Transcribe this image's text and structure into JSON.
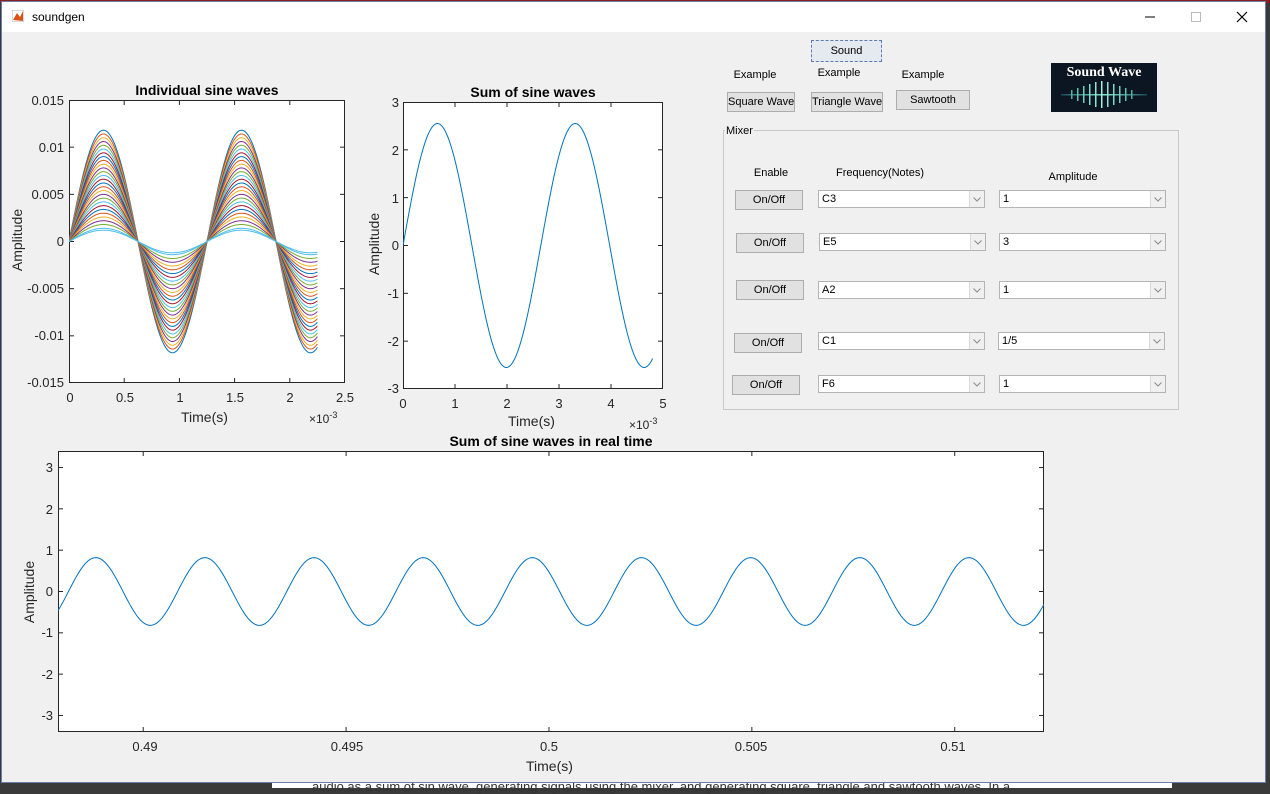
{
  "window": {
    "title": "soundgen"
  },
  "background_doc_text": "audio as a sum of sin wave, generating signals using the mixer, and generating square, triangle and sawtooth waves. In a",
  "plot1": {
    "title": "Individual sine waves",
    "xlabel": "Time(s)",
    "ylabel": "Amplitude",
    "x_exponent": "×10",
    "x_exponent_power": "-3",
    "xticks": [
      "0",
      "0.5",
      "1",
      "1.5",
      "2",
      "2.5"
    ],
    "yticks": [
      "0.015",
      "0.01",
      "0.005",
      "0",
      "-0.005",
      "-0.01",
      "-0.015"
    ]
  },
  "plot2": {
    "title": "Sum of sine waves",
    "xlabel": "Time(s)",
    "ylabel": "Amplitude",
    "x_exponent": "×10",
    "x_exponent_power": "-3",
    "xticks": [
      "0",
      "1",
      "2",
      "3",
      "4",
      "5"
    ],
    "yticks": [
      "3",
      "2",
      "1",
      "0",
      "-1",
      "-2",
      "-3"
    ]
  },
  "plot3": {
    "title": "Sum of sine waves in real time",
    "xlabel": "Time(s)",
    "ylabel": "Amplitude",
    "xticks": [
      "0.49",
      "0.495",
      "0.5",
      "0.505",
      "0.51"
    ],
    "yticks": [
      "3",
      "2",
      "1",
      "0",
      "-1",
      "-2",
      "-3"
    ]
  },
  "controls": {
    "sound_label": "Sound",
    "examples": [
      {
        "caption": "Example",
        "button": "Square Wave"
      },
      {
        "caption": "Example",
        "button": "Triangle Wave"
      },
      {
        "caption": "Example",
        "button": "Sawtooth"
      }
    ],
    "logo_text": "Sound Wave"
  },
  "mixer": {
    "title": "Mixer",
    "headers": {
      "enable": "Enable",
      "frequency": "Frequency(Notes)",
      "amplitude": "Amplitude"
    },
    "rows": [
      {
        "button": "On/Off",
        "note": "C3",
        "amplitude": "1"
      },
      {
        "button": "On/Off",
        "note": "E5",
        "amplitude": "3"
      },
      {
        "button": "On/Off",
        "note": "A2",
        "amplitude": "1"
      },
      {
        "button": "On/Off",
        "note": "C1",
        "amplitude": "1/5"
      },
      {
        "button": "On/Off",
        "note": "F6",
        "amplitude": "1"
      }
    ]
  },
  "chart_data": [
    {
      "type": "line",
      "title": "Individual sine waves",
      "xlabel": "Time(s)",
      "ylabel": "Amplitude",
      "x_scale_note": "×10^-3",
      "xlim": [
        0,
        2.5
      ],
      "ylim": [
        -0.015,
        0.015
      ],
      "x_range_data": [
        0,
        2.25
      ],
      "period": 1.25,
      "amplitudes": [
        0.0118,
        0.0114,
        0.011,
        0.0106,
        0.0102,
        0.0098,
        0.0094,
        0.009,
        0.0086,
        0.0082,
        0.0078,
        0.0074,
        0.007,
        0.0066,
        0.0062,
        0.0058,
        0.0054,
        0.005,
        0.0046,
        0.0042,
        0.0038,
        0.0034,
        0.003,
        0.0026,
        0.0022,
        0.0018,
        0.0014
      ],
      "bias_amplitude": 0.0012,
      "colors": [
        "#0072bd",
        "#d95319",
        "#edb120",
        "#7e2f8e",
        "#77ac30",
        "#4dbeee",
        "#a2142f"
      ]
    },
    {
      "type": "line",
      "title": "Sum of sine waves",
      "xlabel": "Time(s)",
      "ylabel": "Amplitude",
      "x_scale_note": "×10^-3",
      "xlim": [
        0,
        5
      ],
      "ylim": [
        -3,
        3
      ],
      "x_range_data": [
        0,
        4.8
      ],
      "amplitude": 2.55,
      "period": 2.65,
      "color": "#0072bd"
    },
    {
      "type": "line",
      "title": "Sum of sine waves in real time",
      "xlabel": "Time(s)",
      "ylabel": "Amplitude",
      "xlim": [
        0.4879,
        0.5122
      ],
      "ylim": [
        -3.4,
        3.4
      ],
      "amplitude": 0.82,
      "period": 0.00269,
      "peak_at": 0.48883,
      "color": "#0072bd"
    }
  ]
}
